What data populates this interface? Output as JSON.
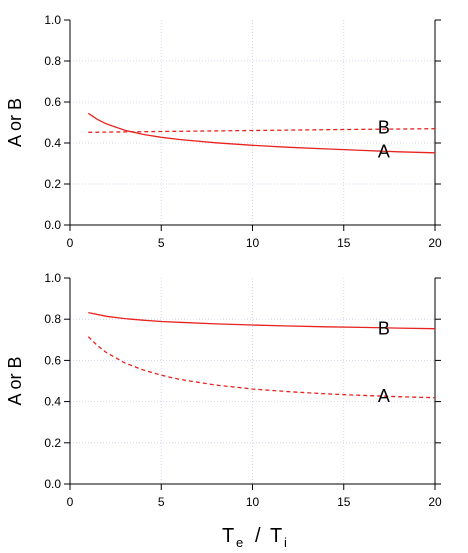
{
  "chart_data": [
    {
      "type": "line",
      "ylabel": "A or B",
      "xlim": [
        0,
        20
      ],
      "ylim": [
        0,
        1.0
      ],
      "x_ticks": [
        "0",
        "5",
        "10",
        "15",
        "20"
      ],
      "y_ticks": [
        "0.0",
        "0.2",
        "0.4",
        "0.6",
        "0.8",
        "1.0"
      ],
      "grid": true,
      "series": [
        {
          "name": "A",
          "style": "solid",
          "color": "#e8231f",
          "x": [
            1,
            1.5,
            2,
            3,
            4,
            5,
            6,
            8,
            10,
            12,
            14,
            16,
            18,
            20
          ],
          "y": [
            0.545,
            0.515,
            0.493,
            0.462,
            0.442,
            0.428,
            0.417,
            0.401,
            0.389,
            0.379,
            0.371,
            0.364,
            0.357,
            0.352
          ]
        },
        {
          "name": "B",
          "style": "dashed",
          "color": "#e8231f",
          "x": [
            1,
            5,
            10,
            15,
            20
          ],
          "y": [
            0.452,
            0.456,
            0.461,
            0.466,
            0.47
          ]
        }
      ],
      "labels": [
        {
          "text": "B",
          "x": 17.2,
          "y": 0.475
        },
        {
          "text": "A",
          "x": 17.2,
          "y": 0.358
        }
      ]
    },
    {
      "type": "line",
      "ylabel": "A or B",
      "xlabel": "T_e / T_i",
      "xlim": [
        0,
        20
      ],
      "ylim": [
        0,
        1.0
      ],
      "x_ticks": [
        "0",
        "5",
        "10",
        "15",
        "20"
      ],
      "y_ticks": [
        "0.0",
        "0.2",
        "0.4",
        "0.6",
        "0.8",
        "1.0"
      ],
      "grid": true,
      "series": [
        {
          "name": "B",
          "style": "solid",
          "color": "#e8231f",
          "x": [
            1,
            2,
            3,
            4,
            5,
            6,
            8,
            10,
            12,
            14,
            16,
            18,
            20
          ],
          "y": [
            0.832,
            0.814,
            0.803,
            0.795,
            0.789,
            0.785,
            0.777,
            0.772,
            0.767,
            0.763,
            0.76,
            0.757,
            0.754
          ]
        },
        {
          "name": "A",
          "style": "dashed",
          "color": "#e8231f",
          "x": [
            1,
            1.5,
            2,
            3,
            4,
            5,
            6,
            8,
            10,
            12,
            14,
            16,
            18,
            20
          ],
          "y": [
            0.715,
            0.672,
            0.638,
            0.588,
            0.554,
            0.528,
            0.508,
            0.48,
            0.461,
            0.448,
            0.438,
            0.43,
            0.424,
            0.419
          ]
        }
      ],
      "labels": [
        {
          "text": "B",
          "x": 17.2,
          "y": 0.755
        },
        {
          "text": "A",
          "x": 17.2,
          "y": 0.427
        }
      ]
    }
  ],
  "xlabel_parts": {
    "main1": "T",
    "sub1": "e",
    "slash": "/",
    "main2": "T",
    "sub2": "i"
  }
}
